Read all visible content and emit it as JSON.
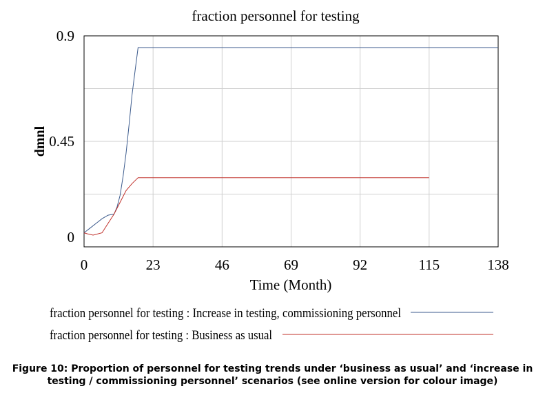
{
  "chart_data": {
    "type": "line",
    "title": "fraction personnel for testing",
    "xlabel": "Time (Month)",
    "ylabel": "dmnl",
    "xlim": [
      0,
      138
    ],
    "ylim": [
      0,
      0.9
    ],
    "xticks": [
      "0",
      "23",
      "46",
      "69",
      "92",
      "115",
      "138"
    ],
    "yticks": [
      "0",
      "0.45",
      "0.9"
    ],
    "grid": true,
    "legend_position": "bottom",
    "series": [
      {
        "name": "fraction personnel for testing : Increase in testing, commissioning personnel",
        "color": "#3b5a8c",
        "x": [
          0,
          2,
          4,
          6,
          8,
          10,
          11,
          12,
          13,
          14,
          15,
          16,
          17,
          18,
          138
        ],
        "y": [
          0.06,
          0.08,
          0.1,
          0.12,
          0.135,
          0.14,
          0.17,
          0.22,
          0.3,
          0.4,
          0.52,
          0.65,
          0.75,
          0.85,
          0.85
        ]
      },
      {
        "name": "fraction personnel for testing : Business as usual",
        "color": "#c0302a",
        "x": [
          0,
          1,
          3,
          6,
          8,
          10,
          12,
          14,
          16,
          18,
          115
        ],
        "y": [
          0.06,
          0.056,
          0.05,
          0.06,
          0.1,
          0.14,
          0.19,
          0.24,
          0.27,
          0.295,
          0.295
        ]
      }
    ]
  },
  "caption": {
    "line1": "Figure 10: Proportion of personnel for testing trends under ‘business as usual’ and ‘increase in",
    "line2": "testing / commissioning personnel’ scenarios (see online version for colour image)"
  }
}
